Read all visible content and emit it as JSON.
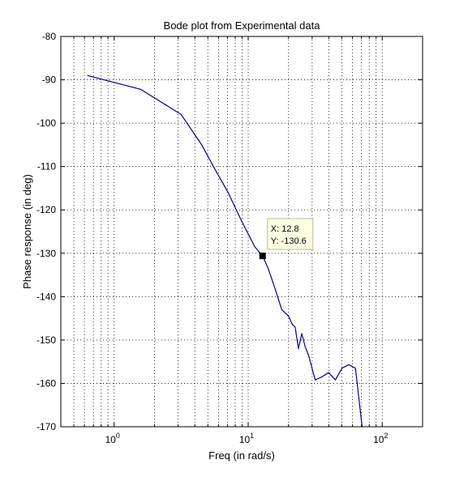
{
  "chart_data": {
    "type": "line",
    "title": "Bode plot from Experimental data",
    "xlabel": "Freq (in rad/s)",
    "ylabel": "Phase response (in deg)",
    "xscale": "log",
    "xlim": [
      0.4,
      200
    ],
    "ylim": [
      -170,
      -80
    ],
    "grid": true,
    "x_ticks": [
      {
        "value": 1,
        "base": "10",
        "exp": "0"
      },
      {
        "value": 10,
        "base": "10",
        "exp": "1"
      },
      {
        "value": 100,
        "base": "10",
        "exp": "2"
      }
    ],
    "y_ticks": [
      -80,
      -90,
      -100,
      -110,
      -120,
      -130,
      -140,
      -150,
      -160,
      -170
    ],
    "series": [
      {
        "color": "#00008b",
        "x": [
          0.63,
          1.58,
          3.16,
          4.5,
          5.62,
          7.08,
          8.91,
          11.2,
          12.8,
          14.1,
          15.8,
          17.8,
          20.0,
          21.4,
          22.4,
          23.7,
          25.1,
          26.6,
          28.2,
          31.6,
          35.5,
          39.8,
          44.7,
          50.1,
          56.2,
          63.1,
          70.8
        ],
        "y": [
          -89,
          -92.2,
          -98,
          -105,
          -110.5,
          -116,
          -122.5,
          -128.5,
          -130.6,
          -133.5,
          -138,
          -143,
          -144.5,
          -146.5,
          -147,
          -152,
          -148.5,
          -151.5,
          -153.5,
          -159.2,
          -158.5,
          -157.5,
          -159.2,
          -156.5,
          -155.7,
          -156.5,
          -170
        ]
      }
    ],
    "datatip": {
      "x": 12.8,
      "y": -130.6,
      "x_label": "X: 12.8",
      "y_label": "Y: -130.6"
    }
  }
}
